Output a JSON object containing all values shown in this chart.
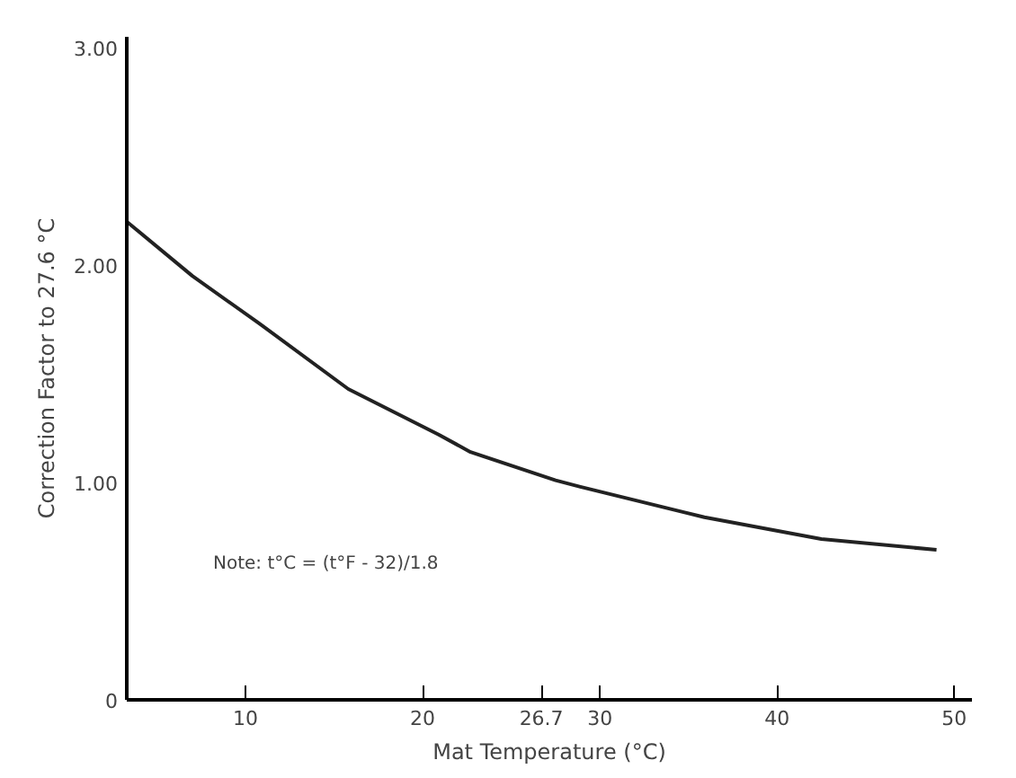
{
  "chart_data": {
    "type": "line",
    "xlabel": "Mat Temperature (°C)",
    "ylabel": "Correction Factor to 27.6 °C",
    "annotations": [
      "Note: t°C = (t°F - 32)/1.8"
    ],
    "x": [
      3.3,
      7,
      10.8,
      15.8,
      20.9,
      22.7,
      27.5,
      28.9,
      35.9,
      42.5,
      49
    ],
    "series": [
      {
        "color": "#222222",
        "values": [
          2.2,
          1.95,
          1.73,
          1.43,
          1.22,
          1.14,
          1.01,
          0.98,
          0.84,
          0.74,
          0.69
        ]
      }
    ],
    "xlim": [
      3.3,
      51
    ],
    "xticks": [
      10,
      20,
      26.7,
      30,
      40,
      50
    ],
    "ylim": [
      0,
      3.05
    ],
    "yticks": [
      {
        "value": 0,
        "label": "0"
      },
      {
        "value": 1,
        "label": "1.00"
      },
      {
        "value": 2,
        "label": "2.00"
      },
      {
        "value": 3,
        "label": "3.00"
      }
    ],
    "marker": "none",
    "line_style": "solid"
  }
}
